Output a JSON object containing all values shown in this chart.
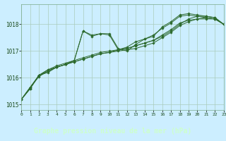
{
  "title": "Graphe pression niveau de la mer (hPa)",
  "bg_color": "#cceeff",
  "plot_bg": "#cceeff",
  "grid_color": "#aaccbb",
  "line_color": "#2d6a2d",
  "label_bg": "#2d6a2d",
  "label_fg": "#ccffcc",
  "xlim": [
    0,
    23
  ],
  "ylim": [
    1014.8,
    1018.75
  ],
  "yticks": [
    1015,
    1016,
    1017,
    1018
  ],
  "xtick_labels": [
    "0",
    "1",
    "2",
    "3",
    "4",
    "5",
    "6",
    "7",
    "8",
    "9",
    "10",
    "11",
    "12",
    "13",
    "14",
    "15",
    "16",
    "17",
    "18",
    "19",
    "20",
    "21",
    "22",
    "23"
  ],
  "series": [
    [
      1015.2,
      1015.6,
      1016.1,
      1016.3,
      1016.4,
      1016.5,
      1016.65,
      1017.75,
      1017.6,
      1017.65,
      1017.65,
      1017.1,
      1017.0,
      1017.25,
      1017.45,
      1017.55,
      1017.9,
      1018.1,
      1018.35,
      1018.4,
      1018.35,
      1018.3,
      1018.25,
      1018.0
    ],
    [
      1015.2,
      1015.6,
      1016.1,
      1016.2,
      1016.4,
      1016.5,
      1016.6,
      1016.7,
      1016.8,
      1016.9,
      1016.95,
      1017.0,
      1017.05,
      1017.1,
      1017.2,
      1017.3,
      1017.5,
      1017.7,
      1017.95,
      1018.1,
      1018.2,
      1018.2,
      1018.2,
      1018.0
    ],
    [
      1015.2,
      1015.65,
      1016.1,
      1016.25,
      1016.4,
      1016.5,
      1016.6,
      1016.7,
      1016.8,
      1016.9,
      1016.95,
      1017.05,
      1017.1,
      1017.2,
      1017.3,
      1017.4,
      1017.55,
      1017.75,
      1018.0,
      1018.2,
      1018.3,
      1018.25,
      1018.2,
      1018.0
    ],
    [
      1015.2,
      1015.65,
      1016.1,
      1016.3,
      1016.45,
      1016.55,
      1016.65,
      1017.75,
      1017.55,
      1017.65,
      1017.6,
      1017.05,
      1017.15,
      1017.35,
      1017.45,
      1017.6,
      1017.85,
      1018.05,
      1018.3,
      1018.35,
      1018.3,
      1018.3,
      1018.25,
      1018.0
    ],
    [
      1015.2,
      1015.65,
      1016.05,
      1016.25,
      1016.4,
      1016.5,
      1016.65,
      1016.75,
      1016.85,
      1016.95,
      1017.0,
      1017.05,
      1017.1,
      1017.2,
      1017.3,
      1017.4,
      1017.6,
      1017.8,
      1018.05,
      1018.15,
      1018.2,
      1018.25,
      1018.2,
      1018.0
    ]
  ]
}
